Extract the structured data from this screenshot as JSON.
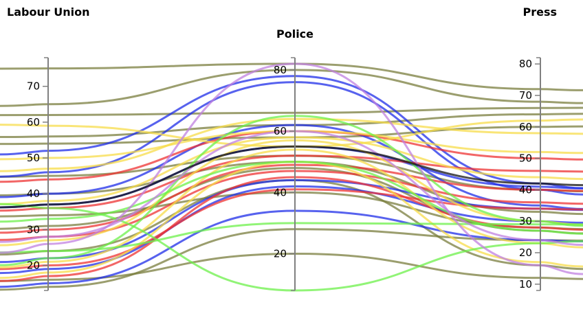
{
  "chart_data": {
    "type": "parallel-coordinates",
    "dimensions": [
      {
        "name": "Labour Union",
        "range": [
          13,
          78
        ],
        "ticks": [
          20,
          30,
          40,
          50,
          60,
          70
        ]
      },
      {
        "name": "Police",
        "range": [
          8,
          84
        ],
        "ticks": [
          20,
          40,
          60,
          80
        ]
      },
      {
        "name": "Press",
        "range": [
          8,
          82
        ],
        "ticks": [
          10,
          20,
          30,
          40,
          50,
          60,
          70,
          80
        ]
      }
    ],
    "colors": {
      "olive": "#7a7d3e",
      "blue": "#1f2ee8",
      "red": "#ee3333",
      "yellow": "#f7dc4a",
      "green": "#6cf04a",
      "purple": "#c080e0",
      "black": "#111111"
    },
    "series": [
      {
        "color": "olive",
        "values": [
          75,
          82,
          72
        ]
      },
      {
        "color": "olive",
        "values": [
          65,
          80,
          68
        ]
      },
      {
        "color": "olive",
        "values": [
          62,
          66,
          66
        ]
      },
      {
        "color": "olive",
        "values": [
          56,
          62,
          64
        ]
      },
      {
        "color": "olive",
        "values": [
          54,
          58,
          60
        ]
      },
      {
        "color": "olive",
        "values": [
          45,
          52,
          40
        ]
      },
      {
        "color": "olive",
        "values": [
          40,
          50,
          33
        ]
      },
      {
        "color": "olive",
        "values": [
          34,
          40,
          28
        ]
      },
      {
        "color": "olive",
        "values": [
          31,
          48,
          27
        ]
      },
      {
        "color": "olive",
        "values": [
          24,
          44,
          16
        ]
      },
      {
        "color": "olive",
        "values": [
          16,
          20,
          12
        ]
      },
      {
        "color": "olive",
        "values": [
          14,
          28,
          24
        ]
      },
      {
        "color": "blue",
        "values": [
          52,
          78,
          42
        ]
      },
      {
        "color": "blue",
        "values": [
          46,
          76,
          40
        ]
      },
      {
        "color": "blue",
        "values": [
          40,
          62,
          35
        ]
      },
      {
        "color": "blue",
        "values": [
          37,
          55,
          41
        ]
      },
      {
        "color": "blue",
        "values": [
          22,
          44,
          34
        ]
      },
      {
        "color": "blue",
        "values": [
          19,
          42,
          30
        ]
      },
      {
        "color": "blue",
        "values": [
          15,
          34,
          24
        ]
      },
      {
        "color": "red",
        "values": [
          44,
          60,
          50
        ]
      },
      {
        "color": "red",
        "values": [
          36,
          52,
          46
        ]
      },
      {
        "color": "red",
        "values": [
          30,
          49,
          40
        ]
      },
      {
        "color": "red",
        "values": [
          28,
          47,
          36
        ]
      },
      {
        "color": "red",
        "values": [
          20,
          41,
          34
        ]
      },
      {
        "color": "red",
        "values": [
          17,
          45,
          28
        ]
      },
      {
        "color": "yellow",
        "values": [
          59,
          55,
          62
        ]
      },
      {
        "color": "yellow",
        "values": [
          50,
          60,
          52
        ]
      },
      {
        "color": "yellow",
        "values": [
          47,
          64,
          58
        ]
      },
      {
        "color": "yellow",
        "values": [
          38,
          58,
          44
        ]
      },
      {
        "color": "yellow",
        "values": [
          27,
          57,
          30
        ]
      },
      {
        "color": "yellow",
        "values": [
          21,
          54,
          23
        ]
      },
      {
        "color": "yellow",
        "values": [
          18,
          50,
          17
        ]
      },
      {
        "color": "green",
        "values": [
          36,
          8,
          23
        ]
      },
      {
        "color": "green",
        "values": [
          24,
          30,
          29
        ]
      },
      {
        "color": "green",
        "values": [
          33,
          50,
          27
        ]
      },
      {
        "color": "green",
        "values": [
          22,
          65,
          30
        ]
      },
      {
        "color": "purple",
        "values": [
          26,
          82,
          16
        ]
      },
      {
        "color": "purple",
        "values": [
          28,
          60,
          24
        ]
      },
      {
        "color": "black",
        "values": [
          37,
          55,
          42
        ]
      }
    ]
  }
}
